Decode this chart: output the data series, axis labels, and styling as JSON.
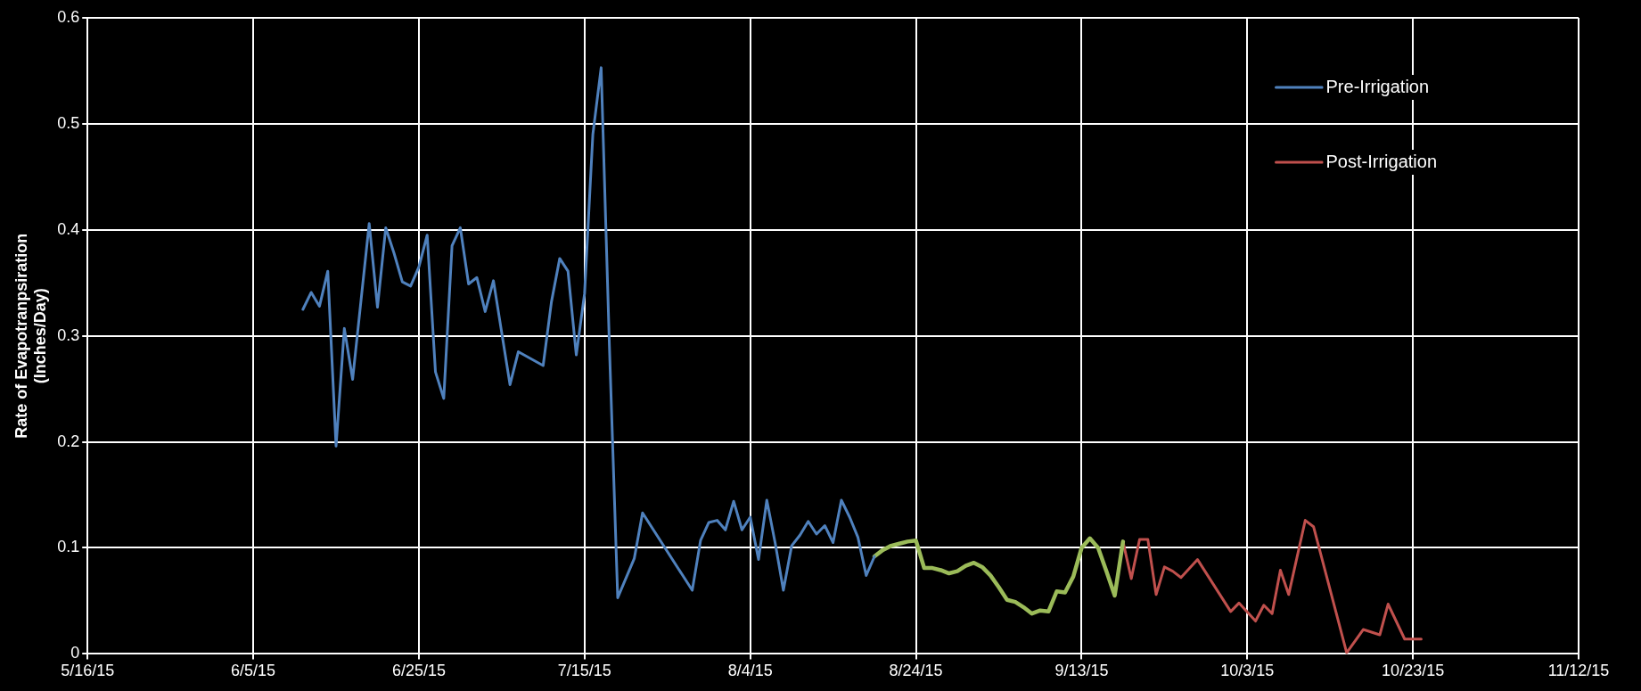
{
  "chart_data": {
    "type": "line",
    "ylabel": "Rate of Evapotranpsiration (Inches/Day)",
    "xlim": [
      "2015-05-16",
      "2015-11-12"
    ],
    "xticks": [
      {
        "value": "2015-05-16",
        "label": "5/16/15"
      },
      {
        "value": "2015-06-05",
        "label": "6/5/15"
      },
      {
        "value": "2015-06-25",
        "label": "6/25/15"
      },
      {
        "value": "2015-07-15",
        "label": "7/15/15"
      },
      {
        "value": "2015-08-04",
        "label": "8/4/15"
      },
      {
        "value": "2015-08-24",
        "label": "8/24/15"
      },
      {
        "value": "2015-09-13",
        "label": "9/13/15"
      },
      {
        "value": "2015-10-03",
        "label": "10/3/15"
      },
      {
        "value": "2015-10-23",
        "label": "10/23/15"
      },
      {
        "value": "2015-11-12",
        "label": "11/12/15"
      }
    ],
    "ylim": [
      0,
      0.6
    ],
    "yticks": [
      0,
      0.1,
      0.2,
      0.3,
      0.4,
      0.5,
      0.6
    ],
    "grid": true,
    "legend": "top right",
    "marker": "none",
    "line_style": "solid",
    "series": [
      {
        "name": "Pre-Irrigation",
        "color": "#4f81bd",
        "x": [
          "2015-06-11",
          "2015-06-12",
          "2015-06-13",
          "2015-06-14",
          "2015-06-15",
          "2015-06-16",
          "2015-06-17",
          "2015-06-19",
          "2015-06-20",
          "2015-06-21",
          "2015-06-22",
          "2015-06-23",
          "2015-06-24",
          "2015-06-25",
          "2015-06-26",
          "2015-06-27",
          "2015-06-28",
          "2015-06-29",
          "2015-06-30",
          "2015-07-01",
          "2015-07-02",
          "2015-07-03",
          "2015-07-04",
          "2015-07-06",
          "2015-07-07",
          "2015-07-10",
          "2015-07-11",
          "2015-07-12",
          "2015-07-13",
          "2015-07-14",
          "2015-07-15",
          "2015-07-16",
          "2015-07-17",
          "2015-07-18",
          "2015-07-19",
          "2015-07-21",
          "2015-07-22",
          "2015-07-28",
          "2015-07-29",
          "2015-07-30",
          "2015-07-31",
          "2015-08-01",
          "2015-08-02",
          "2015-08-03",
          "2015-08-04",
          "2015-08-05",
          "2015-08-06",
          "2015-08-07",
          "2015-08-08",
          "2015-08-09",
          "2015-08-10",
          "2015-08-11",
          "2015-08-12",
          "2015-08-13",
          "2015-08-14",
          "2015-08-15",
          "2015-08-16",
          "2015-08-17",
          "2015-08-18",
          "2015-08-19"
        ],
        "values": [
          0.325,
          0.341,
          0.328,
          0.361,
          0.196,
          0.307,
          0.259,
          0.406,
          0.327,
          0.402,
          0.378,
          0.351,
          0.347,
          0.365,
          0.395,
          0.266,
          0.241,
          0.385,
          0.402,
          0.349,
          0.355,
          0.323,
          0.352,
          0.254,
          0.285,
          0.272,
          0.332,
          0.373,
          0.361,
          0.282,
          0.34,
          0.49,
          0.553,
          0.29,
          0.053,
          0.09,
          0.133,
          0.06,
          0.107,
          0.124,
          0.126,
          0.117,
          0.144,
          0.117,
          0.129,
          0.089,
          0.145,
          0.105,
          0.06,
          0.102,
          0.112,
          0.125,
          0.113,
          0.121,
          0.105,
          0.145,
          0.129,
          0.11,
          0.074,
          0.092
        ]
      },
      {
        "color": "#9bbb59",
        "x": [
          "2015-08-19",
          "2015-08-20",
          "2015-08-21",
          "2015-08-22",
          "2015-08-23",
          "2015-08-24",
          "2015-08-25",
          "2015-08-26",
          "2015-08-27",
          "2015-08-28",
          "2015-08-29",
          "2015-08-30",
          "2015-08-31",
          "2015-09-01",
          "2015-09-02",
          "2015-09-03",
          "2015-09-04",
          "2015-09-05",
          "2015-09-06",
          "2015-09-07",
          "2015-09-08",
          "2015-09-09",
          "2015-09-10",
          "2015-09-11",
          "2015-09-12",
          "2015-09-13",
          "2015-09-14",
          "2015-09-15",
          "2015-09-16",
          "2015-09-17",
          "2015-09-18"
        ],
        "values": [
          0.092,
          0.098,
          0.102,
          0.104,
          0.106,
          0.107,
          0.081,
          0.081,
          0.079,
          0.076,
          0.078,
          0.083,
          0.086,
          0.082,
          0.074,
          0.063,
          0.051,
          0.049,
          0.044,
          0.038,
          0.041,
          0.04,
          0.059,
          0.058,
          0.073,
          0.1,
          0.109,
          0.1,
          0.078,
          0.055,
          0.106
        ]
      },
      {
        "name": "Post-Irrigation",
        "color": "#c0504d",
        "x": [
          "2015-09-18",
          "2015-09-19",
          "2015-09-20",
          "2015-09-21",
          "2015-09-22",
          "2015-09-23",
          "2015-09-24",
          "2015-09-25",
          "2015-09-27",
          "2015-10-01",
          "2015-10-02",
          "2015-10-04",
          "2015-10-05",
          "2015-10-06",
          "2015-10-07",
          "2015-10-08",
          "2015-10-10",
          "2015-10-11",
          "2015-10-15",
          "2015-10-17",
          "2015-10-19",
          "2015-10-20",
          "2015-10-22",
          "2015-10-23",
          "2015-10-24"
        ],
        "values": [
          0.106,
          0.071,
          0.108,
          0.108,
          0.056,
          0.082,
          0.078,
          0.072,
          0.089,
          0.04,
          0.048,
          0.031,
          0.046,
          0.038,
          0.079,
          0.056,
          0.126,
          0.12,
          0.001,
          0.023,
          0.018,
          0.047,
          0.014,
          0.014,
          0.014
        ]
      }
    ]
  }
}
